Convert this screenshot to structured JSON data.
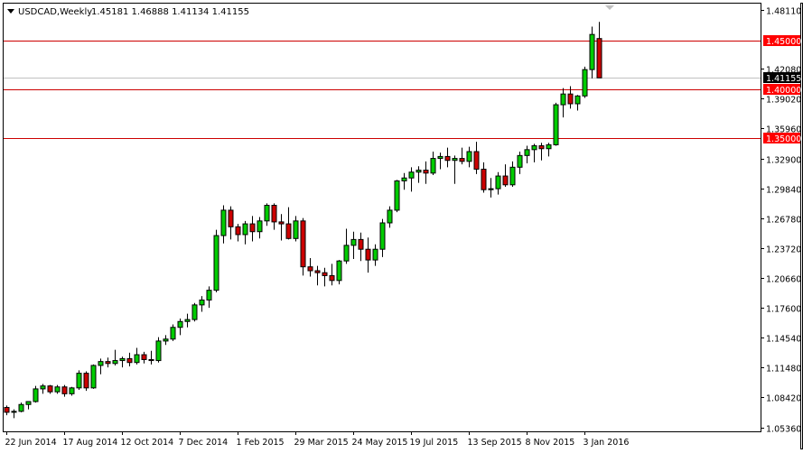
{
  "header": {
    "symbol_timeframe": "USDCAD,Weekly",
    "ohlc": "1.45181 1.46888 1.41134 1.41155"
  },
  "colors": {
    "background": "#ffffff",
    "frame": "#000000",
    "bull_body": "#00cc00",
    "bear_body": "#cc0000",
    "wick": "#000000",
    "horizontal_line": "#cc0000",
    "price_line": "#c0c0c0",
    "level_label_bg": "#ff0000",
    "level_label_text": "#ffffff",
    "current_label_bg": "#000000",
    "current_label_text": "#ffffff"
  },
  "chart_data": {
    "type": "candlestick",
    "title": "USDCAD,Weekly",
    "ylim": [
      1.0495,
      1.4885
    ],
    "y_ticks": [
      "1.48110",
      "1.45000",
      "1.42080",
      "1.41155",
      "1.40000",
      "1.39020",
      "1.35960",
      "1.35000",
      "1.32900",
      "1.29840",
      "1.26780",
      "1.23720",
      "1.20660",
      "1.17600",
      "1.14540",
      "1.11480",
      "1.08420",
      "1.05360"
    ],
    "x_ticks": [
      "22 Jun 2014",
      "17 Aug 2014",
      "12 Oct 2014",
      "7 Dec 2014",
      "1 Feb 2015",
      "29 Mar 2015",
      "24 May 2015",
      "19 Jul 2015",
      "13 Sep 2015",
      "8 Nov 2015",
      "3 Jan 2016"
    ],
    "horizontal_levels": [
      {
        "label": "1.45000",
        "value": 1.45
      },
      {
        "label": "1.40000",
        "value": 1.4
      },
      {
        "label": "1.35000",
        "value": 1.35
      }
    ],
    "current_price": {
      "label": "1.41155",
      "value": 1.41155
    },
    "candles": [
      [
        1.074,
        1.076,
        1.066,
        1.069
      ],
      [
        1.069,
        1.072,
        1.063,
        1.07
      ],
      [
        1.07,
        1.079,
        1.069,
        1.077
      ],
      [
        1.077,
        1.08,
        1.072,
        1.08
      ],
      [
        1.08,
        1.096,
        1.079,
        1.093
      ],
      [
        1.093,
        1.098,
        1.088,
        1.096
      ],
      [
        1.096,
        1.097,
        1.088,
        1.09
      ],
      [
        1.09,
        1.097,
        1.088,
        1.095
      ],
      [
        1.095,
        1.097,
        1.085,
        1.088
      ],
      [
        1.088,
        1.095,
        1.086,
        1.094
      ],
      [
        1.094,
        1.112,
        1.092,
        1.109
      ],
      [
        1.109,
        1.111,
        1.091,
        1.094
      ],
      [
        1.094,
        1.118,
        1.093,
        1.117
      ],
      [
        1.117,
        1.124,
        1.108,
        1.121
      ],
      [
        1.121,
        1.125,
        1.115,
        1.119
      ],
      [
        1.119,
        1.133,
        1.117,
        1.122
      ],
      [
        1.122,
        1.126,
        1.115,
        1.124
      ],
      [
        1.124,
        1.13,
        1.116,
        1.12
      ],
      [
        1.12,
        1.135,
        1.118,
        1.128
      ],
      [
        1.128,
        1.131,
        1.119,
        1.123
      ],
      [
        1.123,
        1.132,
        1.118,
        1.122
      ],
      [
        1.122,
        1.146,
        1.12,
        1.142
      ],
      [
        1.142,
        1.148,
        1.138,
        1.144
      ],
      [
        1.144,
        1.159,
        1.142,
        1.156
      ],
      [
        1.156,
        1.165,
        1.148,
        1.162
      ],
      [
        1.162,
        1.17,
        1.156,
        1.164
      ],
      [
        1.164,
        1.181,
        1.162,
        1.179
      ],
      [
        1.179,
        1.188,
        1.172,
        1.184
      ],
      [
        1.184,
        1.198,
        1.176,
        1.194
      ],
      [
        1.194,
        1.256,
        1.192,
        1.25
      ],
      [
        1.25,
        1.281,
        1.242,
        1.276
      ],
      [
        1.276,
        1.28,
        1.246,
        1.259
      ],
      [
        1.259,
        1.262,
        1.244,
        1.251
      ],
      [
        1.251,
        1.265,
        1.241,
        1.262
      ],
      [
        1.262,
        1.27,
        1.244,
        1.254
      ],
      [
        1.254,
        1.269,
        1.247,
        1.265
      ],
      [
        1.265,
        1.283,
        1.26,
        1.281
      ],
      [
        1.281,
        1.283,
        1.256,
        1.264
      ],
      [
        1.264,
        1.272,
        1.245,
        1.262
      ],
      [
        1.262,
        1.279,
        1.246,
        1.247
      ],
      [
        1.247,
        1.27,
        1.244,
        1.265
      ],
      [
        1.265,
        1.268,
        1.209,
        1.218
      ],
      [
        1.218,
        1.227,
        1.208,
        1.214
      ],
      [
        1.214,
        1.219,
        1.199,
        1.212
      ],
      [
        1.212,
        1.217,
        1.198,
        1.209
      ],
      [
        1.209,
        1.221,
        1.199,
        1.204
      ],
      [
        1.204,
        1.225,
        1.2,
        1.224
      ],
      [
        1.224,
        1.257,
        1.221,
        1.24
      ],
      [
        1.24,
        1.254,
        1.226,
        1.246
      ],
      [
        1.246,
        1.253,
        1.224,
        1.236
      ],
      [
        1.236,
        1.248,
        1.212,
        1.225
      ],
      [
        1.225,
        1.241,
        1.219,
        1.236
      ],
      [
        1.236,
        1.267,
        1.228,
        1.263
      ],
      [
        1.263,
        1.28,
        1.258,
        1.276
      ],
      [
        1.276,
        1.307,
        1.274,
        1.306
      ],
      [
        1.306,
        1.314,
        1.297,
        1.309
      ],
      [
        1.309,
        1.32,
        1.295,
        1.315
      ],
      [
        1.315,
        1.321,
        1.304,
        1.317
      ],
      [
        1.317,
        1.326,
        1.303,
        1.314
      ],
      [
        1.314,
        1.336,
        1.312,
        1.329
      ],
      [
        1.329,
        1.335,
        1.318,
        1.331
      ],
      [
        1.331,
        1.34,
        1.32,
        1.327
      ],
      [
        1.327,
        1.332,
        1.303,
        1.329
      ],
      [
        1.329,
        1.34,
        1.323,
        1.326
      ],
      [
        1.326,
        1.341,
        1.32,
        1.336
      ],
      [
        1.336,
        1.346,
        1.313,
        1.318
      ],
      [
        1.318,
        1.325,
        1.294,
        1.297
      ],
      [
        1.297,
        1.309,
        1.289,
        1.298
      ],
      [
        1.298,
        1.315,
        1.292,
        1.311
      ],
      [
        1.311,
        1.323,
        1.3,
        1.302
      ],
      [
        1.302,
        1.326,
        1.3,
        1.32
      ],
      [
        1.32,
        1.336,
        1.313,
        1.332
      ],
      [
        1.332,
        1.342,
        1.324,
        1.338
      ],
      [
        1.338,
        1.344,
        1.325,
        1.342
      ],
      [
        1.342,
        1.345,
        1.327,
        1.339
      ],
      [
        1.339,
        1.345,
        1.331,
        1.343
      ],
      [
        1.343,
        1.386,
        1.342,
        1.384
      ],
      [
        1.384,
        1.401,
        1.371,
        1.395
      ],
      [
        1.395,
        1.403,
        1.38,
        1.385
      ],
      [
        1.385,
        1.394,
        1.378,
        1.393
      ],
      [
        1.393,
        1.423,
        1.391,
        1.42
      ],
      [
        1.42,
        1.464,
        1.411,
        1.456
      ],
      [
        1.45181,
        1.46888,
        1.41134,
        1.41155
      ]
    ]
  }
}
